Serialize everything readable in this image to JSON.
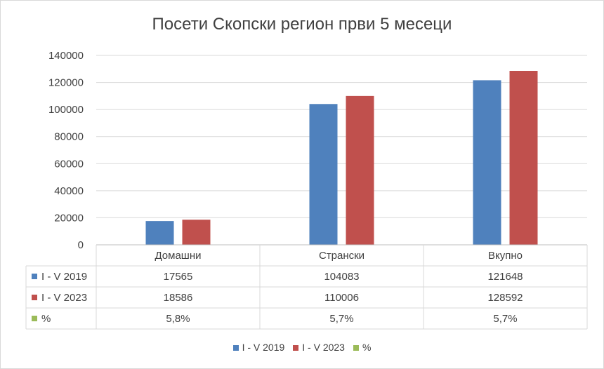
{
  "chart_data": {
    "type": "bar",
    "title": "Посети Скопски регион први 5 месеци",
    "categories": [
      "Домашни",
      "Странски",
      "Вкупно"
    ],
    "series": [
      {
        "name": "I - V 2019",
        "values": [
          17565,
          104083,
          121648
        ],
        "color": "#4f81bd",
        "labels": [
          "17565",
          "104083",
          "121648"
        ]
      },
      {
        "name": "I - V 2023",
        "values": [
          18586,
          110006,
          128592
        ],
        "color": "#c0504d",
        "labels": [
          "18586",
          "110006",
          "128592"
        ]
      },
      {
        "name": "%",
        "values": [
          5.8,
          5.7,
          5.7
        ],
        "color": "#9bbb59",
        "labels": [
          "5,8%",
          "5,7%",
          "5,7%"
        ],
        "plotted": false
      }
    ],
    "ylim": [
      0,
      140000
    ],
    "yticks": [
      0,
      20000,
      40000,
      60000,
      80000,
      100000,
      120000,
      140000
    ],
    "grid": true,
    "legend": "bottom",
    "data_table": true
  }
}
